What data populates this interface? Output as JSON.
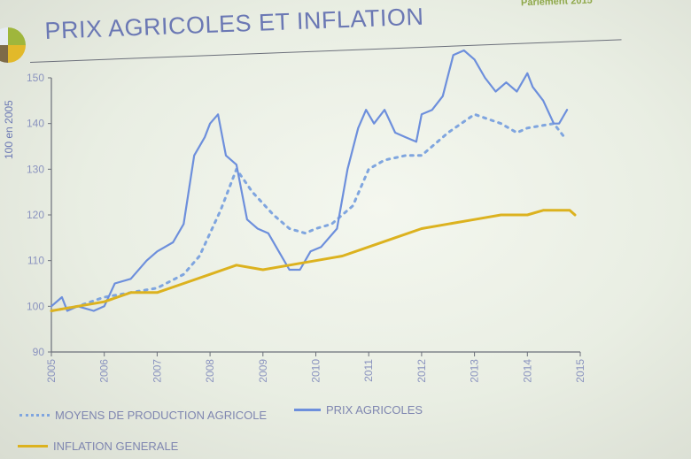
{
  "slide": {
    "title": "PRIX AGRICOLES ET INFLATION",
    "corner_text": "Parlement 2015"
  },
  "colors": {
    "title": "#6b78b4",
    "moyens": "#7fa5df",
    "prix": "#6d8fdc",
    "inflation": "#dcb21f",
    "axis": "#6b6f7a"
  },
  "chart_data": {
    "type": "line",
    "title": "PRIX AGRICOLES ET INFLATION",
    "xlabel": "",
    "ylabel": "100 en 2005",
    "xlim": [
      2005,
      2015
    ],
    "ylim": [
      90,
      150
    ],
    "xticks": [
      "2005",
      "2006",
      "2007",
      "2008",
      "2009",
      "2010",
      "2011",
      "2012",
      "2013",
      "2014",
      "2015"
    ],
    "yticks": [
      90,
      100,
      110,
      120,
      130,
      140,
      150
    ],
    "grid": false,
    "legend_position": "bottom",
    "series": [
      {
        "name": "MOYENS DE PRODUCTION AGRICOLE",
        "style": "dotted",
        "x": [
          2005.0,
          2005.5,
          2006.0,
          2006.5,
          2007.0,
          2007.5,
          2007.8,
          2008.2,
          2008.5,
          2008.8,
          2009.2,
          2009.5,
          2009.8,
          2010.0,
          2010.3,
          2010.7,
          2011.0,
          2011.3,
          2011.7,
          2012.0,
          2012.5,
          2013.0,
          2013.5,
          2013.8,
          2014.0,
          2014.5,
          2014.7
        ],
        "y": [
          99,
          100,
          102,
          103,
          104,
          107,
          111,
          121,
          130,
          125,
          120,
          117,
          116,
          117,
          118,
          122,
          130,
          132,
          133,
          133,
          138,
          142,
          140,
          138,
          139,
          140,
          137
        ]
      },
      {
        "name": "PRIX AGRICOLES",
        "style": "solid",
        "x": [
          2005.0,
          2005.2,
          2005.3,
          2005.5,
          2005.8,
          2006.0,
          2006.2,
          2006.5,
          2006.8,
          2007.0,
          2007.3,
          2007.5,
          2007.7,
          2007.9,
          2008.0,
          2008.15,
          2008.3,
          2008.5,
          2008.7,
          2008.9,
          2009.1,
          2009.3,
          2009.5,
          2009.7,
          2009.9,
          2010.1,
          2010.4,
          2010.6,
          2010.8,
          2010.95,
          2011.1,
          2011.3,
          2011.5,
          2011.7,
          2011.9,
          2012.0,
          2012.2,
          2012.4,
          2012.6,
          2012.8,
          2013.0,
          2013.2,
          2013.4,
          2013.6,
          2013.8,
          2014.0,
          2014.1,
          2014.3,
          2014.5,
          2014.6,
          2014.75
        ],
        "y": [
          100,
          102,
          99,
          100,
          99,
          100,
          105,
          106,
          110,
          112,
          114,
          118,
          133,
          137,
          140,
          142,
          133,
          131,
          119,
          117,
          116,
          112,
          108,
          108,
          112,
          113,
          117,
          130,
          139,
          143,
          140,
          143,
          138,
          137,
          136,
          142,
          143,
          146,
          155,
          156,
          154,
          150,
          147,
          149,
          147,
          151,
          148,
          145,
          140,
          140,
          143
        ]
      },
      {
        "name": "INFLATION GENERALE",
        "style": "solid",
        "x": [
          2005.0,
          2005.5,
          2006.0,
          2006.5,
          2007.0,
          2007.5,
          2008.0,
          2008.5,
          2009.0,
          2009.5,
          2010.0,
          2010.5,
          2011.0,
          2011.5,
          2012.0,
          2012.5,
          2013.0,
          2013.5,
          2014.0,
          2014.3,
          2014.6,
          2014.8,
          2014.9
        ],
        "y": [
          99,
          100,
          101,
          103,
          103,
          105,
          107,
          109,
          108,
          109,
          110,
          111,
          113,
          115,
          117,
          118,
          119,
          120,
          120,
          121,
          121,
          121,
          120
        ]
      }
    ]
  }
}
